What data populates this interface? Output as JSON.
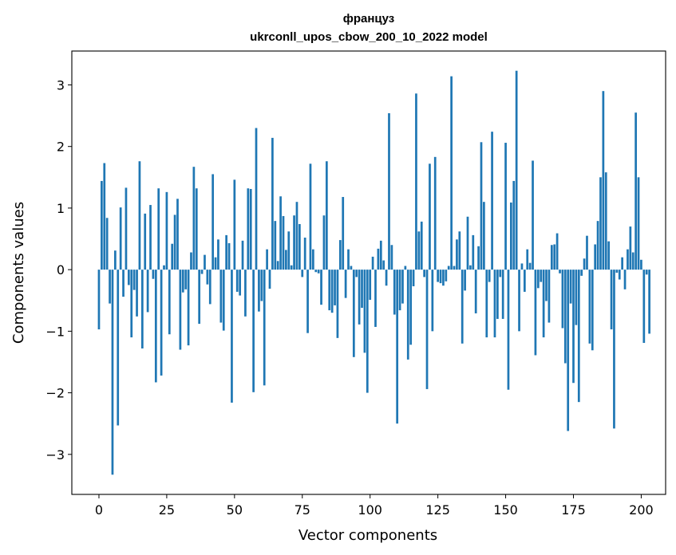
{
  "chart_data": {
    "type": "bar",
    "title": "француз",
    "subtitle": "ukrconll_upos_cbow_200_10_2022 model",
    "xlabel": "Vector components",
    "ylabel": "Components values",
    "xlim": [
      -10,
      209
    ],
    "ylim": [
      -3.65,
      3.55
    ],
    "x_ticks": [
      0,
      25,
      50,
      75,
      100,
      125,
      150,
      175,
      200
    ],
    "y_ticks": [
      -3,
      -2,
      -1,
      0,
      1,
      2,
      3
    ],
    "x_tick_labels": [
      "0",
      "25",
      "50",
      "75",
      "100",
      "125",
      "150",
      "175",
      "200"
    ],
    "y_tick_labels": [
      "−3",
      "−2",
      "−1",
      "0",
      "1",
      "2",
      "3"
    ],
    "grid": false,
    "bar_color": "#1f77b4",
    "series": [
      {
        "values": [
          -0.97,
          1.44,
          1.73,
          0.84,
          -0.55,
          -3.33,
          0.31,
          -2.53,
          1.01,
          -0.44,
          1.33,
          -0.25,
          -1.1,
          -0.33,
          -0.76,
          1.76,
          -1.28,
          0.91,
          -0.69,
          1.05,
          -0.15,
          -1.83,
          1.32,
          -1.72,
          0.07,
          1.26,
          -1.05,
          0.42,
          0.89,
          1.15,
          -1.3,
          -0.37,
          -0.32,
          -1.23,
          0.28,
          1.67,
          1.32,
          -0.88,
          -0.07,
          0.24,
          -0.24,
          -0.56,
          1.55,
          0.2,
          0.49,
          -0.86,
          -0.99,
          0.56,
          0.43,
          -2.16,
          1.46,
          -0.36,
          -0.42,
          0.47,
          -0.76,
          1.32,
          1.31,
          -1.99,
          2.3,
          -0.68,
          -0.51,
          -1.88,
          0.33,
          -0.31,
          2.14,
          0.79,
          0.14,
          1.19,
          0.87,
          0.32,
          0.62,
          0.07,
          0.88,
          1.1,
          0.74,
          -0.12,
          0.52,
          -1.03,
          1.72,
          0.33,
          -0.04,
          -0.06,
          -0.57,
          0.88,
          1.76,
          -0.66,
          -0.7,
          -0.58,
          -1.11,
          0.48,
          1.18,
          -0.46,
          0.33,
          0.06,
          -1.42,
          -0.12,
          -0.89,
          -0.62,
          -1.35,
          -2.0,
          -0.49,
          0.21,
          -0.93,
          0.34,
          0.47,
          0.15,
          -0.26,
          2.54,
          0.4,
          -0.73,
          -2.5,
          -0.66,
          -0.55,
          0.06,
          -1.46,
          -1.22,
          -0.27,
          2.86,
          0.62,
          0.78,
          -0.12,
          -1.94,
          1.72,
          -1.0,
          1.83,
          -0.2,
          -0.22,
          -0.26,
          -0.19,
          0.06,
          3.14,
          0.06,
          0.49,
          0.62,
          -1.2,
          -0.34,
          0.86,
          0.07,
          0.56,
          -0.71,
          0.38,
          2.07,
          1.1,
          -1.1,
          -0.2,
          2.24,
          -1.1,
          -0.8,
          -0.12,
          -0.8,
          2.06,
          -1.95,
          1.09,
          1.44,
          3.23,
          -1.0,
          0.1,
          -0.36,
          0.33,
          0.11,
          1.77,
          -1.39,
          -0.3,
          -0.2,
          -1.1,
          -0.51,
          -0.86,
          0.4,
          0.41,
          0.59,
          -0.06,
          -0.95,
          -1.52,
          -2.62,
          -0.55,
          -1.84,
          -0.9,
          -2.15,
          -0.1,
          0.18,
          0.55,
          -1.2,
          -1.31,
          0.41,
          0.79,
          1.5,
          2.9,
          1.58,
          0.46,
          -0.97,
          -2.58,
          -0.05,
          -0.16,
          0.2,
          -0.32,
          0.33,
          0.7,
          0.28,
          2.55,
          1.5,
          0.16,
          -1.19,
          -0.08,
          -1.04
        ]
      }
    ]
  }
}
